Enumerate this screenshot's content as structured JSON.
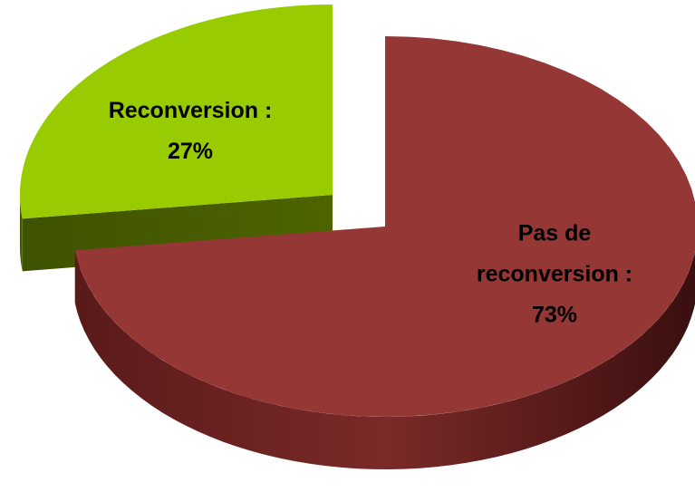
{
  "chart_data": {
    "type": "pie",
    "categories": [
      "Pas de reconversion :",
      "Reconversion :"
    ],
    "values": [
      73,
      27
    ],
    "value_labels": [
      "73%",
      "27%"
    ],
    "colors": [
      "#953735",
      "#99cc00"
    ]
  }
}
